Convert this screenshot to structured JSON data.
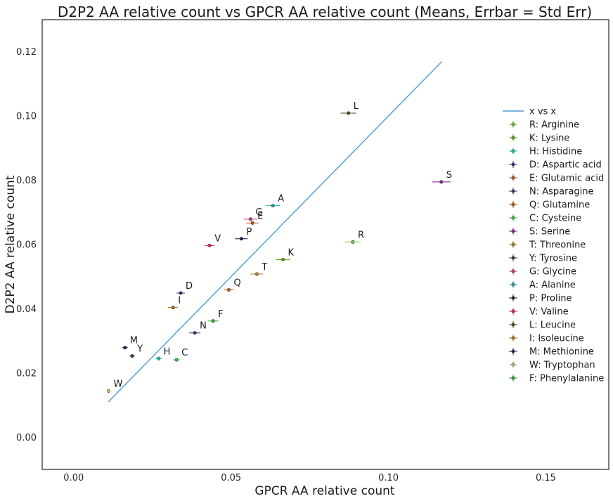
{
  "chart_data": {
    "type": "scatter",
    "title": "D2P2 AA relative count vs GPCR AA relative count (Means, Errbar = Std Err)",
    "xlabel": "GPCR AA relative count",
    "ylabel": "D2P2 AA relative count",
    "xlim": [
      -0.01,
      0.17
    ],
    "ylim": [
      -0.01,
      0.13
    ],
    "xticks": [
      0.0,
      0.05,
      0.1,
      0.15
    ],
    "xtick_labels": [
      "0.00",
      "0.05",
      "0.10",
      "0.15"
    ],
    "yticks": [
      0.0,
      0.02,
      0.04,
      0.06,
      0.08,
      0.1,
      0.12
    ],
    "ytick_labels": [
      "0.00",
      "0.02",
      "0.04",
      "0.06",
      "0.08",
      "0.10",
      "0.12"
    ],
    "grid": false,
    "legend_position": "right",
    "line": {
      "name": "x vs x",
      "color": "#4c9bd6",
      "x": [
        0.011,
        0.117
      ],
      "y": [
        0.011,
        0.117
      ]
    },
    "series": [
      {
        "name": "R: Arginine",
        "label": "R",
        "x": 0.0887,
        "y": 0.0608,
        "xerr": 0.0025,
        "yerr": 0.0003,
        "color": "#7cc63c"
      },
      {
        "name": "K: Lysine",
        "label": "K",
        "x": 0.0665,
        "y": 0.0553,
        "xerr": 0.0023,
        "yerr": 0.0003,
        "color": "#6aab14"
      },
      {
        "name": "H: Histidine",
        "label": "H",
        "x": 0.027,
        "y": 0.0245,
        "xerr": 0.001,
        "yerr": 0.0003,
        "color": "#17c9a8"
      },
      {
        "name": "D: Aspartic acid",
        "label": "D",
        "x": 0.034,
        "y": 0.0449,
        "xerr": 0.0013,
        "yerr": 0.0003,
        "color": "#2b2f78"
      },
      {
        "name": "E: Glutamic acid",
        "label": "E",
        "x": 0.0568,
        "y": 0.0667,
        "xerr": 0.002,
        "yerr": 0.0003,
        "color": "#c0501e"
      },
      {
        "name": "N: Asparagine",
        "label": "N",
        "x": 0.0385,
        "y": 0.0325,
        "xerr": 0.0018,
        "yerr": 0.0003,
        "color": "#253b63"
      },
      {
        "name": "Q: Glutamine",
        "label": "Q",
        "x": 0.0493,
        "y": 0.0459,
        "xerr": 0.0015,
        "yerr": 0.0003,
        "color": "#c55a14"
      },
      {
        "name": "C: Cysteine",
        "label": "C",
        "x": 0.0327,
        "y": 0.0241,
        "xerr": 0.0012,
        "yerr": 0.0003,
        "color": "#3ec23e"
      },
      {
        "name": "S: Serine",
        "label": "S",
        "x": 0.1168,
        "y": 0.0795,
        "xerr": 0.003,
        "yerr": 0.0003,
        "color": "#8a1e8a"
      },
      {
        "name": "T: Threonine",
        "label": "T",
        "x": 0.0582,
        "y": 0.0508,
        "xerr": 0.002,
        "yerr": 0.0003,
        "color": "#a88a1c"
      },
      {
        "name": "Y: Tyrosine",
        "label": "Y",
        "x": 0.0186,
        "y": 0.0253,
        "xerr": 0.0009,
        "yerr": 0.0003,
        "color": "#2e3550"
      },
      {
        "name": "G: Glycine",
        "label": "G",
        "x": 0.0562,
        "y": 0.0679,
        "xerr": 0.0022,
        "yerr": 0.0003,
        "color": "#c0407a"
      },
      {
        "name": "A: Alanine",
        "label": "A",
        "x": 0.0633,
        "y": 0.0721,
        "xerr": 0.0022,
        "yerr": 0.0003,
        "color": "#1fb0a8"
      },
      {
        "name": "P: Proline",
        "label": "P",
        "x": 0.0533,
        "y": 0.0618,
        "xerr": 0.002,
        "yerr": 0.0003,
        "color": "#2a0f3a"
      },
      {
        "name": "V: Valine",
        "label": "V",
        "x": 0.0432,
        "y": 0.0597,
        "xerr": 0.0016,
        "yerr": 0.0003,
        "color": "#d92665"
      },
      {
        "name": "L: Leucine",
        "label": "L",
        "x": 0.0873,
        "y": 0.1009,
        "xerr": 0.0025,
        "yerr": 0.0003,
        "color": "#3a5a1e"
      },
      {
        "name": "I: Isoleucine",
        "label": "I",
        "x": 0.0316,
        "y": 0.0404,
        "xerr": 0.0016,
        "yerr": 0.0003,
        "color": "#a57a10"
      },
      {
        "name": "M: Methionine",
        "label": "M",
        "x": 0.0163,
        "y": 0.0279,
        "xerr": 0.0009,
        "yerr": 0.0003,
        "color": "#3a1050"
      },
      {
        "name": "W: Tryptophan",
        "label": "W",
        "x": 0.0111,
        "y": 0.0144,
        "xerr": 0.0005,
        "yerr": 0.0003,
        "color": "#c9b87a"
      },
      {
        "name": "F: Phenylalanine",
        "label": "F",
        "x": 0.0443,
        "y": 0.0362,
        "xerr": 0.0017,
        "yerr": 0.0003,
        "color": "#2fa52f"
      }
    ]
  }
}
